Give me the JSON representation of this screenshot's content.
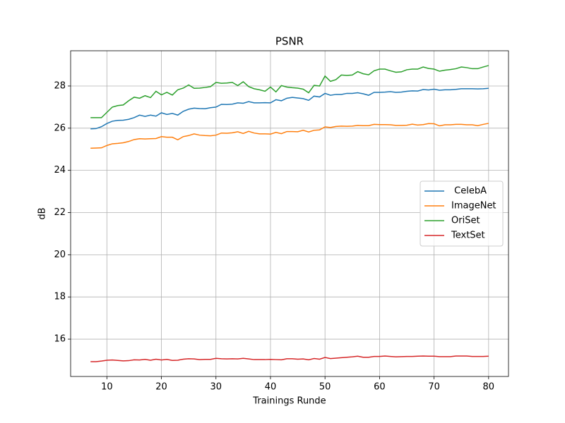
{
  "chart_data": {
    "type": "line",
    "title": "PSNR",
    "x_label": "Trainings Runde",
    "y_label": "dB",
    "x": [
      7,
      8,
      9,
      10,
      11,
      12,
      13,
      14,
      15,
      16,
      17,
      18,
      19,
      20,
      21,
      22,
      23,
      24,
      25,
      26,
      27,
      28,
      29,
      30,
      31,
      32,
      33,
      34,
      35,
      36,
      37,
      38,
      39,
      40,
      41,
      42,
      43,
      44,
      45,
      46,
      47,
      48,
      49,
      50,
      51,
      52,
      53,
      54,
      55,
      56,
      57,
      58,
      59,
      60,
      61,
      62,
      63,
      64,
      65,
      66,
      67,
      68,
      69,
      70,
      71,
      72,
      73,
      74,
      75,
      76,
      77,
      78,
      79,
      80
    ],
    "series": [
      {
        "name": " CelebA",
        "color": "#1f77b4",
        "values": [
          25.97,
          25.98,
          26.07,
          26.22,
          26.33,
          26.37,
          26.38,
          26.42,
          26.5,
          26.62,
          26.56,
          26.62,
          26.57,
          26.73,
          26.65,
          26.7,
          26.62,
          26.8,
          26.9,
          26.95,
          26.93,
          26.92,
          26.97,
          27.0,
          27.13,
          27.12,
          27.14,
          27.2,
          27.18,
          27.26,
          27.2,
          27.2,
          27.21,
          27.2,
          27.35,
          27.3,
          27.42,
          27.46,
          27.43,
          27.4,
          27.32,
          27.52,
          27.48,
          27.65,
          27.56,
          27.6,
          27.6,
          27.65,
          27.65,
          27.68,
          27.63,
          27.56,
          27.7,
          27.7,
          27.71,
          27.73,
          27.7,
          27.71,
          27.75,
          27.77,
          27.76,
          27.83,
          27.81,
          27.85,
          27.8,
          27.82,
          27.82,
          27.84,
          27.87,
          27.87,
          27.87,
          27.86,
          27.87,
          27.89
        ]
      },
      {
        "name": "ImageNet",
        "color": "#ff7f0e",
        "values": [
          25.05,
          25.06,
          25.07,
          25.18,
          25.26,
          25.28,
          25.31,
          25.37,
          25.46,
          25.5,
          25.49,
          25.5,
          25.51,
          25.6,
          25.57,
          25.57,
          25.45,
          25.6,
          25.65,
          25.73,
          25.67,
          25.65,
          25.64,
          25.67,
          25.77,
          25.76,
          25.78,
          25.83,
          25.75,
          25.85,
          25.77,
          25.73,
          25.73,
          25.72,
          25.8,
          25.74,
          25.84,
          25.84,
          25.83,
          25.9,
          25.82,
          25.9,
          25.92,
          26.06,
          26.03,
          26.08,
          26.1,
          26.09,
          26.1,
          26.13,
          26.12,
          26.12,
          26.18,
          26.17,
          26.17,
          26.16,
          26.13,
          26.13,
          26.14,
          26.19,
          26.15,
          26.17,
          26.22,
          26.21,
          26.11,
          26.16,
          26.16,
          26.18,
          26.18,
          26.16,
          26.16,
          26.12,
          26.18,
          26.23
        ]
      },
      {
        "name": "OriSet",
        "color": "#2ca02c",
        "values": [
          26.5,
          26.5,
          26.5,
          26.75,
          27.0,
          27.07,
          27.1,
          27.3,
          27.47,
          27.42,
          27.54,
          27.45,
          27.75,
          27.58,
          27.7,
          27.57,
          27.82,
          27.9,
          28.05,
          27.89,
          27.9,
          27.93,
          27.97,
          28.17,
          28.13,
          28.14,
          28.17,
          28.02,
          28.2,
          27.97,
          27.87,
          27.82,
          27.75,
          27.95,
          27.72,
          28.02,
          27.95,
          27.92,
          27.9,
          27.85,
          27.68,
          28.03,
          28.0,
          28.47,
          28.22,
          28.3,
          28.52,
          28.5,
          28.52,
          28.68,
          28.58,
          28.53,
          28.72,
          28.8,
          28.8,
          28.72,
          28.65,
          28.67,
          28.77,
          28.8,
          28.8,
          28.9,
          28.83,
          28.8,
          28.7,
          28.75,
          28.78,
          28.82,
          28.9,
          28.87,
          28.82,
          28.82,
          28.9,
          28.97
        ]
      },
      {
        "name": "TextSet",
        "color": "#d62728",
        "values": [
          14.93,
          14.93,
          14.96,
          15.0,
          15.01,
          14.99,
          14.97,
          14.98,
          15.02,
          15.01,
          15.04,
          15.0,
          15.05,
          15.01,
          15.04,
          14.99,
          15.0,
          15.05,
          15.07,
          15.06,
          15.03,
          15.04,
          15.04,
          15.09,
          15.07,
          15.06,
          15.07,
          15.06,
          15.09,
          15.06,
          15.03,
          15.03,
          15.03,
          15.04,
          15.03,
          15.02,
          15.07,
          15.07,
          15.05,
          15.06,
          15.02,
          15.08,
          15.05,
          15.13,
          15.08,
          15.1,
          15.12,
          15.14,
          15.16,
          15.19,
          15.14,
          15.14,
          15.18,
          15.18,
          15.2,
          15.18,
          15.16,
          15.17,
          15.18,
          15.18,
          15.19,
          15.2,
          15.19,
          15.19,
          15.17,
          15.17,
          15.17,
          15.2,
          15.2,
          15.2,
          15.18,
          15.18,
          15.18,
          15.19
        ]
      }
    ],
    "xlim": [
      3.35,
      83.65
    ],
    "xticks": [
      10,
      20,
      30,
      40,
      50,
      60,
      70,
      80
    ],
    "ylim": [
      14.23,
      29.67
    ],
    "yticks": [
      16,
      18,
      20,
      22,
      24,
      26,
      28
    ],
    "grid": true,
    "legend": "center right"
  }
}
